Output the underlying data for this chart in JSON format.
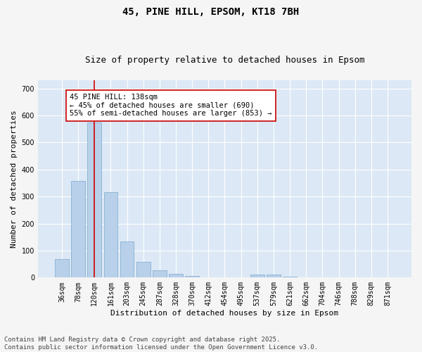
{
  "title1": "45, PINE HILL, EPSOM, KT18 7BH",
  "title2": "Size of property relative to detached houses in Epsom",
  "xlabel": "Distribution of detached houses by size in Epsom",
  "ylabel": "Number of detached properties",
  "categories": [
    "36sqm",
    "78sqm",
    "120sqm",
    "161sqm",
    "203sqm",
    "245sqm",
    "287sqm",
    "328sqm",
    "370sqm",
    "412sqm",
    "454sqm",
    "495sqm",
    "537sqm",
    "579sqm",
    "621sqm",
    "662sqm",
    "704sqm",
    "746sqm",
    "788sqm",
    "829sqm",
    "871sqm"
  ],
  "values": [
    68,
    357,
    573,
    315,
    133,
    57,
    27,
    15,
    6,
    2,
    2,
    0,
    10,
    10,
    3,
    0,
    0,
    0,
    0,
    0,
    0
  ],
  "bar_color": "#b8d0ea",
  "bar_edge_color": "#7aa8cc",
  "vline_x": 2,
  "vline_color": "#cc0000",
  "annotation_text": "45 PINE HILL: 138sqm\n← 45% of detached houses are smaller (690)\n55% of semi-detached houses are larger (853) →",
  "annotation_box_facecolor": "#ffffff",
  "annotation_box_edgecolor": "#cc0000",
  "ylim": [
    0,
    730
  ],
  "yticks": [
    0,
    100,
    200,
    300,
    400,
    500,
    600,
    700
  ],
  "fig_facecolor": "#f5f5f5",
  "ax_facecolor": "#dce8f5",
  "grid_color": "#ffffff",
  "footer_text": "Contains HM Land Registry data © Crown copyright and database right 2025.\nContains public sector information licensed under the Open Government Licence v3.0.",
  "title1_fontsize": 10,
  "title2_fontsize": 9,
  "xlabel_fontsize": 8,
  "ylabel_fontsize": 8,
  "tick_fontsize": 7,
  "annotation_fontsize": 7.5,
  "footer_fontsize": 6.5
}
